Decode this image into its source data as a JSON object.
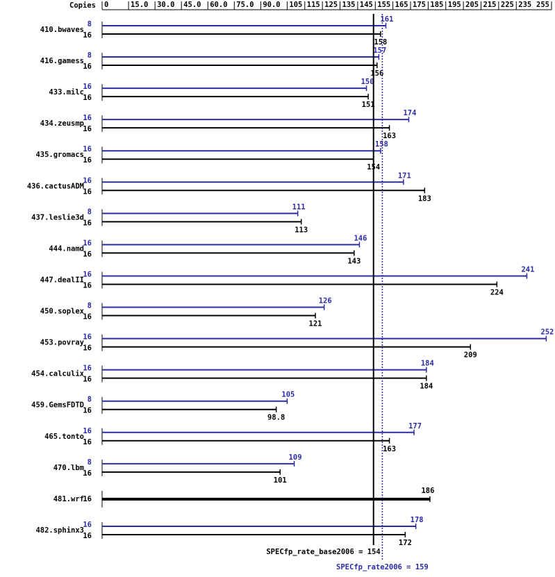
{
  "chart_data": {
    "type": "bar",
    "copies_label": "Copies",
    "xlim": [
      0,
      255
    ],
    "xticks": [
      0,
      {
        "value": 15,
        "label": "15.0"
      },
      {
        "value": 30,
        "label": "30.0"
      },
      {
        "value": 45,
        "label": "45.0"
      },
      {
        "value": 60,
        "label": "60.0"
      },
      {
        "value": 75,
        "label": "75.0"
      },
      {
        "value": 90,
        "label": "90.0"
      },
      105,
      115,
      125,
      135,
      145,
      155,
      165,
      175,
      185,
      195,
      205,
      215,
      225,
      235,
      255
    ],
    "peak_color": "#2b2ba8",
    "base_color": "#000000",
    "benchmarks": [
      {
        "name": "410.bwaves",
        "peak_copies": 8,
        "peak": 161,
        "base_copies": 16,
        "base": 158
      },
      {
        "name": "416.gamess",
        "peak_copies": 8,
        "peak": 157,
        "base_copies": 16,
        "base": 156
      },
      {
        "name": "433.milc",
        "peak_copies": 16,
        "peak": 150,
        "base_copies": 16,
        "base": 151
      },
      {
        "name": "434.zeusmp",
        "peak_copies": 16,
        "peak": 174,
        "base_copies": 16,
        "base": 163
      },
      {
        "name": "435.gromacs",
        "peak_copies": 16,
        "peak": 158,
        "base_copies": 16,
        "base": 154
      },
      {
        "name": "436.cactusADM",
        "peak_copies": 16,
        "peak": 171,
        "base_copies": 16,
        "base": 183
      },
      {
        "name": "437.leslie3d",
        "peak_copies": 8,
        "peak": 111,
        "base_copies": 16,
        "base": 113
      },
      {
        "name": "444.namd",
        "peak_copies": 16,
        "peak": 146,
        "base_copies": 16,
        "base": 143
      },
      {
        "name": "447.dealII",
        "peak_copies": 16,
        "peak": 241,
        "base_copies": 16,
        "base": 224
      },
      {
        "name": "450.soplex",
        "peak_copies": 8,
        "peak": 126,
        "base_copies": 16,
        "base": 121
      },
      {
        "name": "453.povray",
        "peak_copies": 16,
        "peak": 252,
        "base_copies": 16,
        "base": 209
      },
      {
        "name": "454.calculix",
        "peak_copies": 16,
        "peak": 184,
        "base_copies": 16,
        "base": 184
      },
      {
        "name": "459.GemsFDTD",
        "peak_copies": 8,
        "peak": 105,
        "base_copies": 16,
        "base": 98.8
      },
      {
        "name": "465.tonto",
        "peak_copies": 16,
        "peak": 177,
        "base_copies": 16,
        "base": 163
      },
      {
        "name": "470.lbm",
        "peak_copies": 8,
        "peak": 109,
        "base_copies": 16,
        "base": 101
      },
      {
        "name": "481.wrf",
        "peak_copies": null,
        "peak": null,
        "base_copies": 16,
        "base": 186
      },
      {
        "name": "482.sphinx3",
        "peak_copies": 16,
        "peak": 178,
        "base_copies": 16,
        "base": 172
      }
    ],
    "base_metric": {
      "value": 154,
      "label": "SPECfp_rate_base2006 = 154"
    },
    "peak_metric": {
      "value": 159,
      "label": "SPECfp_rate2006 = 159"
    }
  }
}
